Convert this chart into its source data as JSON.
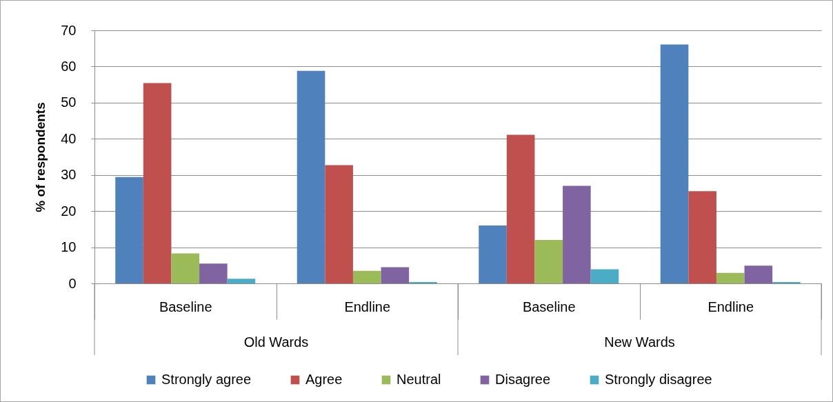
{
  "chart_data": {
    "type": "bar",
    "ylabel": "% of respondents",
    "categories": [
      "Baseline",
      "Endline",
      "Baseline",
      "Endline"
    ],
    "annotations": [
      "Old Wards",
      "New Wards"
    ],
    "series": [
      {
        "name": "Strongly agree",
        "color": "#4f81bd",
        "values": [
          29.4,
          58.8,
          16.0,
          66.1
        ]
      },
      {
        "name": "Agree",
        "color": "#c0504d",
        "values": [
          55.4,
          32.7,
          41.1,
          25.5
        ]
      },
      {
        "name": "Neutral",
        "color": "#9bbb59",
        "values": [
          8.3,
          3.5,
          12.0,
          2.9
        ]
      },
      {
        "name": "Disagree",
        "color": "#8064a2",
        "values": [
          5.5,
          4.5,
          27.0,
          4.9
        ]
      },
      {
        "name": "Strongly disagree",
        "color": "#4bacc6",
        "values": [
          1.3,
          0.4,
          3.9,
          0.4
        ]
      }
    ],
    "ylim": [
      0,
      70
    ],
    "yticks": [
      0,
      10,
      20,
      30,
      40,
      50,
      60,
      70
    ],
    "grid": "y",
    "legend": "bottom"
  }
}
